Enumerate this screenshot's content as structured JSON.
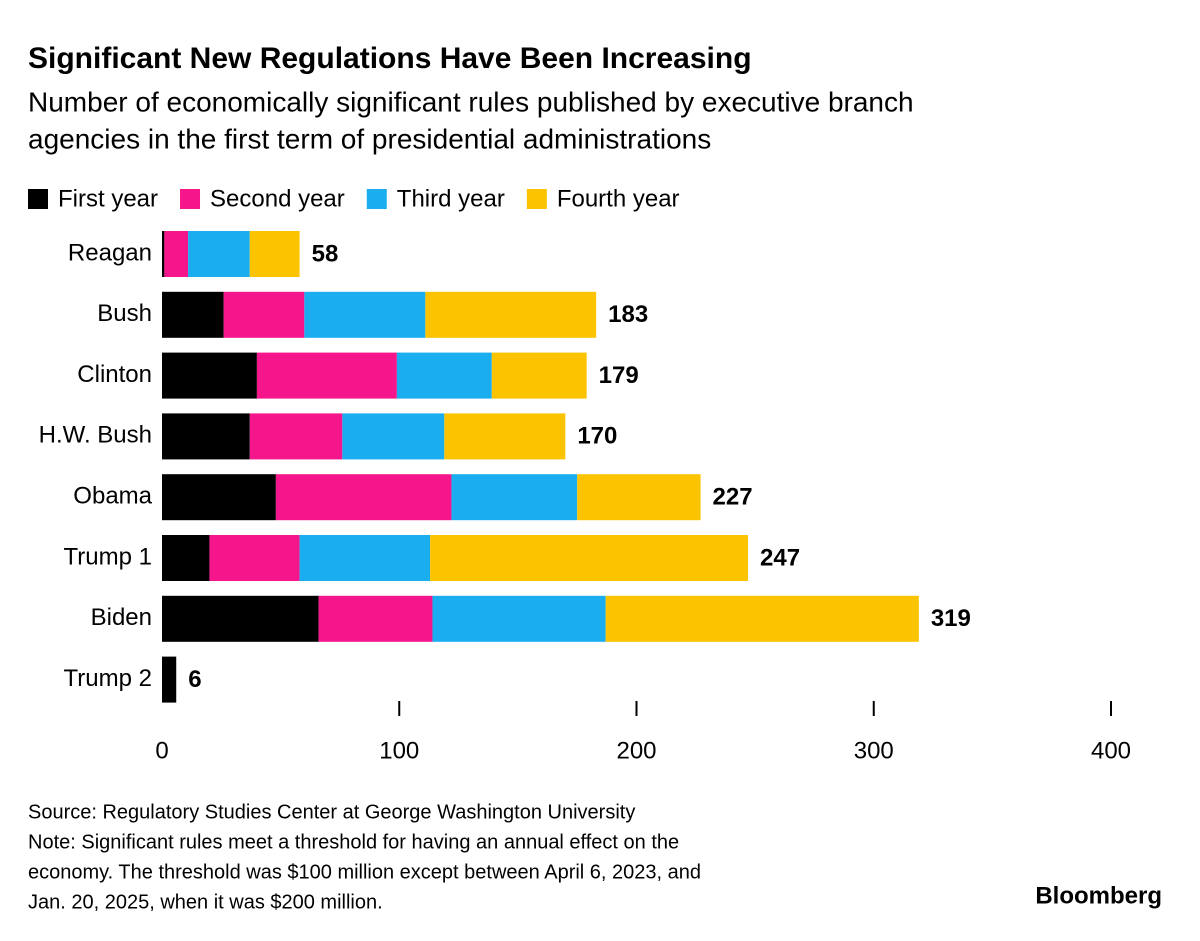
{
  "chart_data": {
    "type": "stacked-bar-horizontal",
    "title": "Significant New Regulations Have Been Increasing",
    "subtitle": [
      "Number of economically significant rules published by executive branch",
      "agencies in the first term of presidential administrations"
    ],
    "categories": [
      "Reagan",
      "Bush",
      "Clinton",
      "H.W. Bush",
      "Obama",
      "Trump 1",
      "Biden",
      "Trump 2"
    ],
    "series": [
      {
        "name": "First year",
        "color": "#000000",
        "values": [
          1,
          26,
          40,
          37,
          48,
          20,
          66,
          6
        ]
      },
      {
        "name": "Second year",
        "color": "#f5168b",
        "values": [
          10,
          34,
          59,
          39,
          74,
          38,
          48,
          null
        ]
      },
      {
        "name": "Third year",
        "color": "#1aaef0",
        "values": [
          26,
          51,
          40,
          43,
          53,
          55,
          73,
          null
        ]
      },
      {
        "name": "Fourth year",
        "color": "#fcc400",
        "values": [
          21,
          72,
          40,
          51,
          52,
          134,
          132,
          null
        ]
      }
    ],
    "totals": [
      58,
      183,
      179,
      170,
      227,
      247,
      319,
      6
    ],
    "xlim": [
      0,
      400
    ],
    "xticks": [
      0,
      100,
      200,
      300,
      400
    ],
    "source": "Source: Regulatory Studies Center at George Washington University",
    "note": [
      "Note: Significant rules meet a threshold for having an annual effect on the",
      "economy. The threshold was $100 million except between April 6, 2023, and",
      "Jan. 20, 2025, when it was $200 million."
    ],
    "brand": "Bloomberg"
  }
}
